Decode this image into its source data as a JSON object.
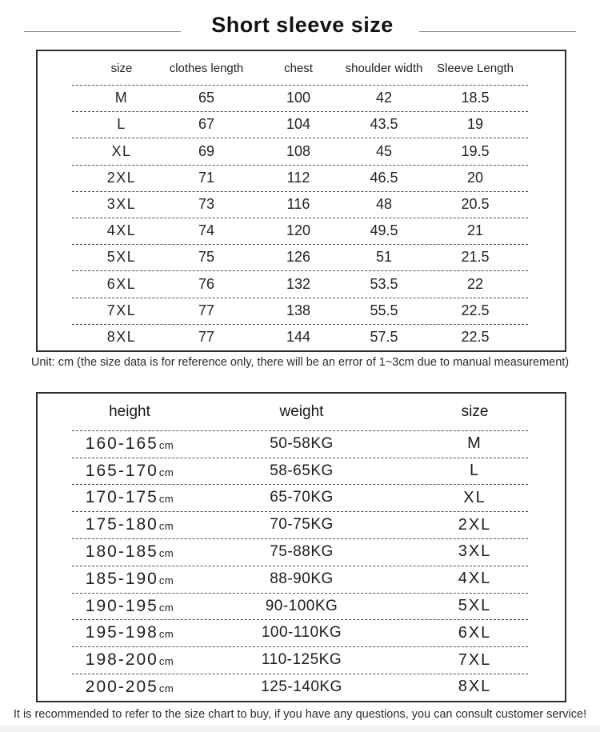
{
  "page": {
    "title": "Short sleeve size",
    "background_color": "#ffffff",
    "text_color": "#242424",
    "border_color": "#2e2e2e",
    "bottom_strip_color": "#f1f1f1"
  },
  "size_table": {
    "headers": [
      "size",
      "clothes length",
      "chest",
      "shoulder width",
      "Sleeve Length"
    ],
    "rows": [
      [
        "M",
        "65",
        "100",
        "42",
        "18.5"
      ],
      [
        "L",
        "67",
        "104",
        "43.5",
        "19"
      ],
      [
        "XL",
        "69",
        "108",
        "45",
        "19.5"
      ],
      [
        "2XL",
        "71",
        "112",
        "46.5",
        "20"
      ],
      [
        "3XL",
        "73",
        "116",
        "48",
        "20.5"
      ],
      [
        "4XL",
        "74",
        "120",
        "49.5",
        "21"
      ],
      [
        "5XL",
        "75",
        "126",
        "51",
        "21.5"
      ],
      [
        "6XL",
        "76",
        "132",
        "53.5",
        "22"
      ],
      [
        "7XL",
        "77",
        "138",
        "55.5",
        "22.5"
      ],
      [
        "8XL",
        "77",
        "144",
        "57.5",
        "22.5"
      ]
    ]
  },
  "fit_table": {
    "headers": [
      "height",
      "weight",
      "size"
    ],
    "rows": [
      {
        "height": "160-165",
        "height_unit": "cm",
        "weight": "50-58KG",
        "size": "M"
      },
      {
        "height": "165-170",
        "height_unit": "cm",
        "weight": "58-65KG",
        "size": "L"
      },
      {
        "height": "170-175",
        "height_unit": "cm",
        "weight": "65-70KG",
        "size": "XL"
      },
      {
        "height": "175-180",
        "height_unit": "cm",
        "weight": "70-75KG",
        "size": "2XL"
      },
      {
        "height": "180-185",
        "height_unit": "cm",
        "weight": "75-88KG",
        "size": "3XL"
      },
      {
        "height": "185-190",
        "height_unit": "cm",
        "weight": "88-90KG",
        "size": "4XL"
      },
      {
        "height": "190-195",
        "height_unit": "cm",
        "weight": "90-100KG",
        "size": "5XL"
      },
      {
        "height": "195-198",
        "height_unit": "cm",
        "weight": "100-110KG",
        "size": "6XL"
      },
      {
        "height": "198-200",
        "height_unit": "cm",
        "weight": "110-125KG",
        "size": "7XL"
      },
      {
        "height": "200-205",
        "height_unit": "cm",
        "weight": "125-140KG",
        "size": "8XL"
      }
    ]
  },
  "notes": {
    "unit": "Unit: cm (the size data is for reference only, there will be an error of 1~3cm due to manual measurement)",
    "recommendation": "It is recommended to refer to the size chart to buy, if you have any questions, you can consult customer service!"
  },
  "chart_data": [
    {
      "type": "table",
      "title": "Short sleeve size",
      "columns": [
        "size",
        "clothes length",
        "chest",
        "shoulder width",
        "Sleeve Length"
      ],
      "unit": "cm",
      "rows": [
        [
          "M",
          65,
          100,
          42,
          18.5
        ],
        [
          "L",
          67,
          104,
          43.5,
          19
        ],
        [
          "XL",
          69,
          108,
          45,
          19.5
        ],
        [
          "2XL",
          71,
          112,
          46.5,
          20
        ],
        [
          "3XL",
          73,
          116,
          48,
          20.5
        ],
        [
          "4XL",
          74,
          120,
          49.5,
          21
        ],
        [
          "5XL",
          75,
          126,
          51,
          21.5
        ],
        [
          "6XL",
          76,
          132,
          53.5,
          22
        ],
        [
          "7XL",
          77,
          138,
          55.5,
          22.5
        ],
        [
          "8XL",
          77,
          144,
          57.5,
          22.5
        ]
      ]
    },
    {
      "type": "table",
      "title": "Height / weight to size",
      "columns": [
        "height",
        "weight",
        "size"
      ],
      "rows": [
        [
          "160-165cm",
          "50-58KG",
          "M"
        ],
        [
          "165-170cm",
          "58-65KG",
          "L"
        ],
        [
          "170-175cm",
          "65-70KG",
          "XL"
        ],
        [
          "175-180cm",
          "70-75KG",
          "2XL"
        ],
        [
          "180-185cm",
          "75-88KG",
          "3XL"
        ],
        [
          "185-190cm",
          "88-90KG",
          "4XL"
        ],
        [
          "190-195cm",
          "90-100KG",
          "5XL"
        ],
        [
          "195-198cm",
          "100-110KG",
          "6XL"
        ],
        [
          "198-200cm",
          "110-125KG",
          "7XL"
        ],
        [
          "200-205cm",
          "125-140KG",
          "8XL"
        ]
      ]
    }
  ]
}
